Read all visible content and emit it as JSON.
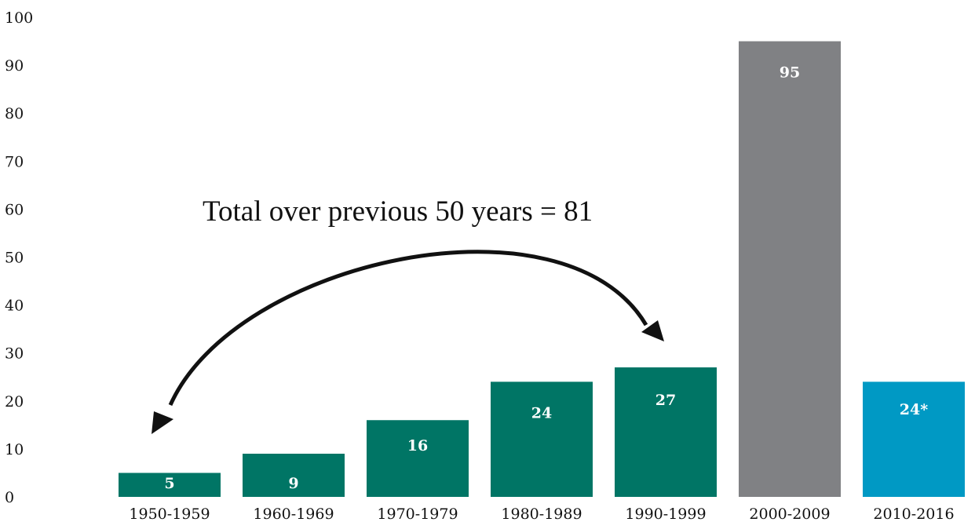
{
  "chart_data": {
    "type": "bar",
    "categories": [
      "1950-1959",
      "1960-1969",
      "1970-1979",
      "1980-1989",
      "1990-1999",
      "2000-2009",
      "2010-2016"
    ],
    "values": [
      5,
      9,
      16,
      24,
      27,
      95,
      24
    ],
    "data_labels": [
      "5",
      "9",
      "16",
      "24",
      "27",
      "95",
      "24*"
    ],
    "colors": [
      "#007565",
      "#007565",
      "#007565",
      "#007565",
      "#007565",
      "#808184",
      "#0099c4"
    ],
    "ylim": [
      0,
      100
    ],
    "yticks": [
      "0",
      "10",
      "20",
      "30",
      "40",
      "50",
      "60",
      "70",
      "80",
      "90",
      "100"
    ],
    "grid": false,
    "legend": "none",
    "title": "",
    "xlabel": "",
    "ylabel": "",
    "annotation": {
      "text": "Total over previous 50 years = 81",
      "arrow": "double-headed curved arrow from 1950-1959 to 1990-1999"
    }
  }
}
